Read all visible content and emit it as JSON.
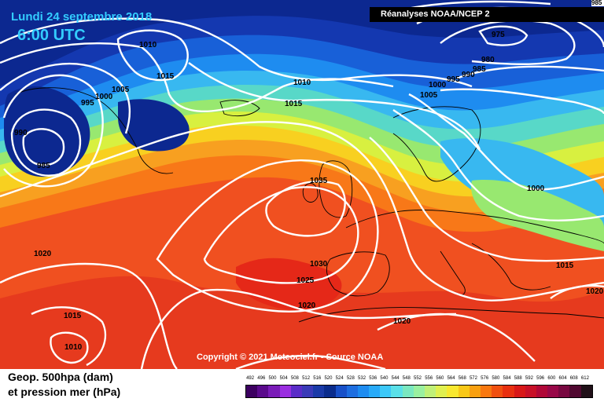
{
  "header": {
    "date": "Lundi 24 septembre 2018",
    "time": "6:00 UTC",
    "source": "Réanalyses NOAA/NCEP 2",
    "corner": "985"
  },
  "copyright": "Copyright © 2021 Meteociel.fr - Source NOAA",
  "legend": {
    "line1": "Geop. 500hpa (dam)",
    "line2": "et pression mer (hPa)",
    "scale_values": [
      "492",
      "496",
      "500",
      "504",
      "508",
      "512",
      "516",
      "520",
      "524",
      "528",
      "532",
      "536",
      "540",
      "544",
      "548",
      "552",
      "556",
      "560",
      "564",
      "568",
      "572",
      "576",
      "580",
      "584",
      "588",
      "592",
      "596",
      "600",
      "604",
      "608",
      "612"
    ],
    "scale_colors": [
      "#3c0060",
      "#5a0a8c",
      "#7a1cb8",
      "#9a2ee0",
      "#5a2cc8",
      "#3a3ab8",
      "#1a3aa8",
      "#0a2c8c",
      "#1850c8",
      "#1e6ee0",
      "#1e8cf0",
      "#28aaf8",
      "#3cc8f8",
      "#5ae0e8",
      "#7ae8c0",
      "#9af0a0",
      "#c0f078",
      "#e0f050",
      "#f8e830",
      "#f8c818",
      "#f8a010",
      "#f87810",
      "#f05010",
      "#e83010",
      "#d81818",
      "#c81028",
      "#b00838",
      "#980848",
      "#780840",
      "#500830",
      "#201018"
    ]
  },
  "isobars": {
    "l975": "975",
    "l980": "980",
    "l985a": "985",
    "l985b": "985",
    "l990a": "990",
    "l990b": "990",
    "l995a": "995",
    "l995b": "995",
    "l1000a": "1000",
    "l1000b": "1000",
    "l1000c": "1000",
    "l1005a": "1005",
    "l1005b": "1005",
    "l1010a": "1010",
    "l1010b": "1010",
    "l1015a": "1015",
    "l1015b": "1015",
    "l1015c": "1015",
    "l1015d": "1015",
    "l1020a": "1020",
    "l1020b": "1020",
    "l1020c": "1020",
    "l1020d": "1020",
    "l1025": "1025",
    "l1030": "1030",
    "l1035": "1035",
    "l1010c": "1010"
  }
}
